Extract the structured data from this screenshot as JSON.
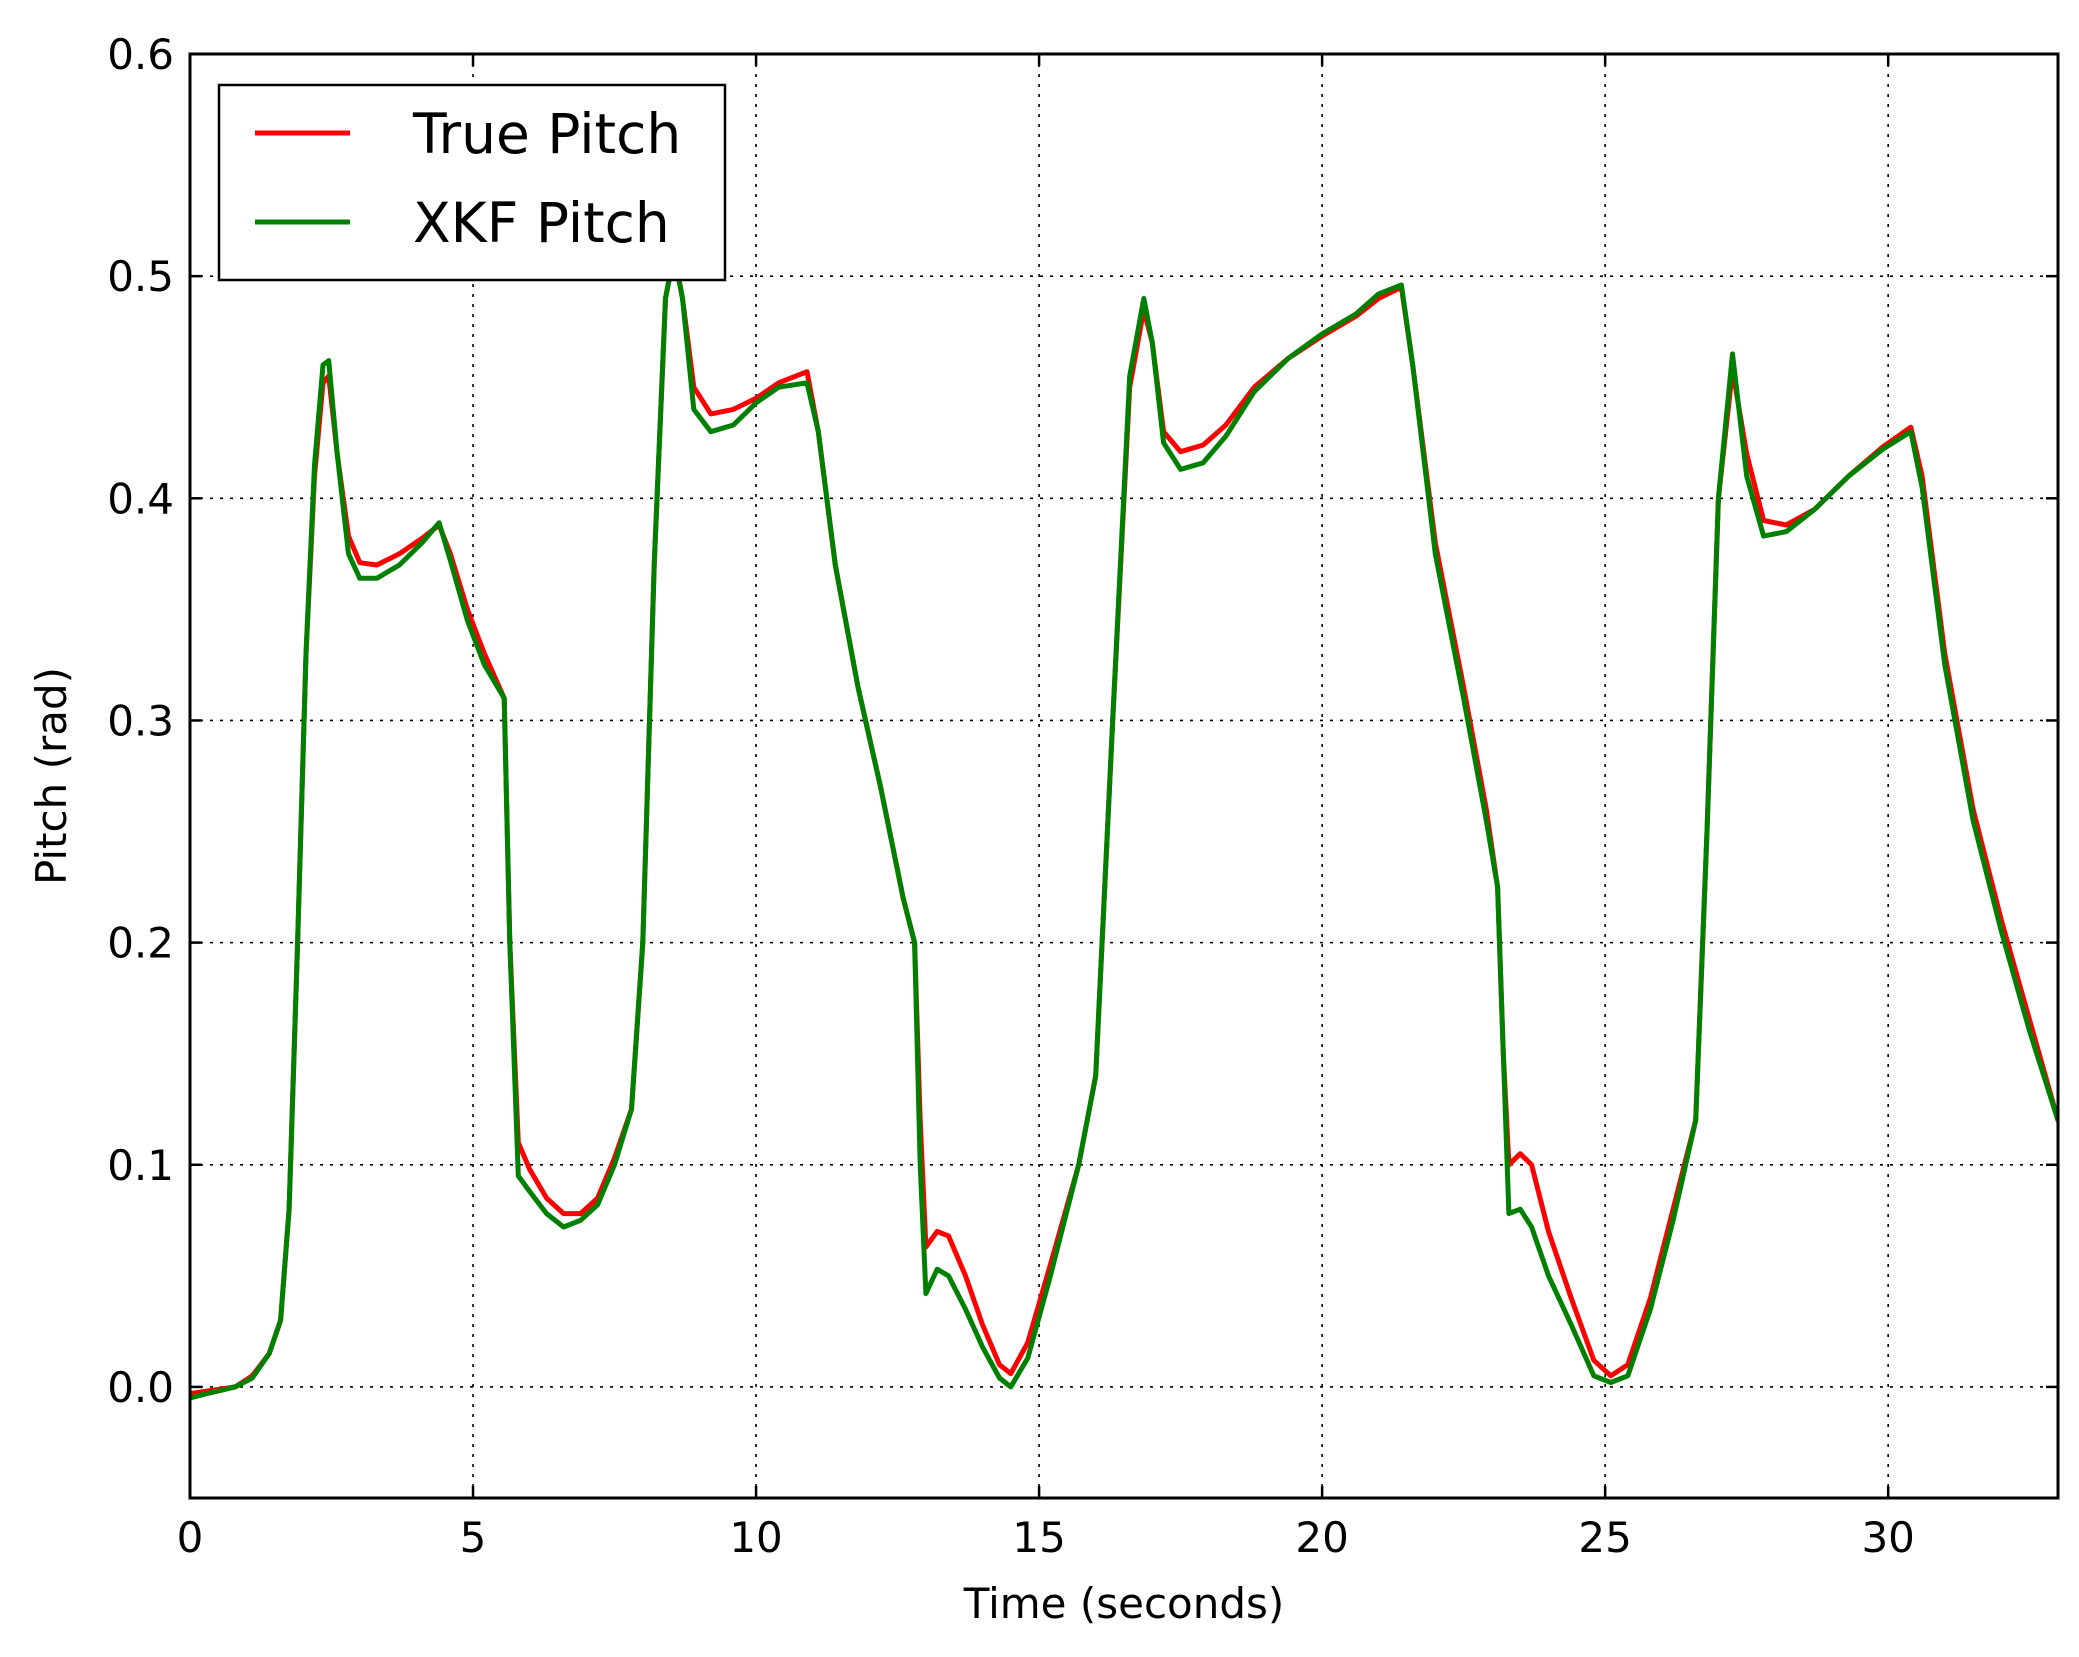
{
  "chart_data": {
    "type": "line",
    "title": "",
    "xlabel": "Time (seconds)",
    "ylabel": "Pitch (rad)",
    "xlim": [
      0,
      33
    ],
    "ylim": [
      -0.05,
      0.6
    ],
    "xticks": [
      0,
      5,
      10,
      15,
      20,
      25,
      30
    ],
    "xtick_labels": [
      "0",
      "5",
      "10",
      "15",
      "20",
      "25",
      "30"
    ],
    "yticks": [
      0.0,
      0.1,
      0.2,
      0.3,
      0.4,
      0.5,
      0.6
    ],
    "ytick_labels": [
      "0.0",
      "0.1",
      "0.2",
      "0.3",
      "0.4",
      "0.5",
      "0.6"
    ],
    "grid": true,
    "legend_position": "top-left",
    "series": [
      {
        "name": "True Pitch",
        "color": "#ff0000",
        "points": [
          [
            0,
            -0.003
          ],
          [
            0.8,
            0.0
          ],
          [
            1.1,
            0.005
          ],
          [
            1.4,
            0.015
          ],
          [
            1.6,
            0.03
          ],
          [
            1.75,
            0.08
          ],
          [
            1.9,
            0.2
          ],
          [
            2.05,
            0.33
          ],
          [
            2.2,
            0.41
          ],
          [
            2.35,
            0.452
          ],
          [
            2.45,
            0.455
          ],
          [
            2.6,
            0.42
          ],
          [
            2.8,
            0.383
          ],
          [
            3.0,
            0.371
          ],
          [
            3.3,
            0.37
          ],
          [
            3.7,
            0.375
          ],
          [
            4.1,
            0.382
          ],
          [
            4.4,
            0.388
          ],
          [
            4.6,
            0.375
          ],
          [
            4.9,
            0.35
          ],
          [
            5.2,
            0.33
          ],
          [
            5.55,
            0.31
          ],
          [
            5.65,
            0.2
          ],
          [
            5.8,
            0.11
          ],
          [
            6.0,
            0.098
          ],
          [
            6.3,
            0.085
          ],
          [
            6.6,
            0.078
          ],
          [
            6.9,
            0.078
          ],
          [
            7.2,
            0.085
          ],
          [
            7.5,
            0.103
          ],
          [
            7.8,
            0.125
          ],
          [
            8.0,
            0.2
          ],
          [
            8.2,
            0.37
          ],
          [
            8.4,
            0.49
          ],
          [
            8.55,
            0.51
          ],
          [
            8.7,
            0.49
          ],
          [
            8.9,
            0.45
          ],
          [
            9.2,
            0.438
          ],
          [
            9.6,
            0.44
          ],
          [
            10.0,
            0.445
          ],
          [
            10.4,
            0.452
          ],
          [
            10.9,
            0.457
          ],
          [
            11.1,
            0.43
          ],
          [
            11.4,
            0.37
          ],
          [
            11.8,
            0.315
          ],
          [
            12.2,
            0.27
          ],
          [
            12.6,
            0.22
          ],
          [
            12.8,
            0.2
          ],
          [
            12.9,
            0.12
          ],
          [
            13.0,
            0.063
          ],
          [
            13.2,
            0.07
          ],
          [
            13.4,
            0.068
          ],
          [
            13.7,
            0.05
          ],
          [
            14.0,
            0.028
          ],
          [
            14.3,
            0.01
          ],
          [
            14.5,
            0.006
          ],
          [
            14.8,
            0.02
          ],
          [
            15.2,
            0.055
          ],
          [
            15.7,
            0.1
          ],
          [
            16.0,
            0.14
          ],
          [
            16.3,
            0.3
          ],
          [
            16.6,
            0.45
          ],
          [
            16.85,
            0.485
          ],
          [
            17.0,
            0.47
          ],
          [
            17.2,
            0.43
          ],
          [
            17.5,
            0.421
          ],
          [
            17.9,
            0.424
          ],
          [
            18.3,
            0.433
          ],
          [
            18.8,
            0.45
          ],
          [
            19.4,
            0.463
          ],
          [
            20.0,
            0.473
          ],
          [
            20.6,
            0.482
          ],
          [
            21.0,
            0.49
          ],
          [
            21.4,
            0.495
          ],
          [
            21.6,
            0.46
          ],
          [
            22.0,
            0.38
          ],
          [
            22.5,
            0.315
          ],
          [
            22.9,
            0.26
          ],
          [
            23.1,
            0.225
          ],
          [
            23.2,
            0.15
          ],
          [
            23.3,
            0.1
          ],
          [
            23.5,
            0.105
          ],
          [
            23.7,
            0.1
          ],
          [
            24.0,
            0.07
          ],
          [
            24.4,
            0.04
          ],
          [
            24.8,
            0.012
          ],
          [
            25.1,
            0.005
          ],
          [
            25.4,
            0.01
          ],
          [
            25.8,
            0.04
          ],
          [
            26.2,
            0.08
          ],
          [
            26.6,
            0.12
          ],
          [
            26.8,
            0.25
          ],
          [
            27.0,
            0.4
          ],
          [
            27.25,
            0.458
          ],
          [
            27.5,
            0.42
          ],
          [
            27.8,
            0.39
          ],
          [
            28.2,
            0.388
          ],
          [
            28.7,
            0.395
          ],
          [
            29.3,
            0.41
          ],
          [
            29.9,
            0.423
          ],
          [
            30.4,
            0.432
          ],
          [
            30.6,
            0.41
          ],
          [
            31.0,
            0.33
          ],
          [
            31.5,
            0.26
          ],
          [
            32.0,
            0.21
          ],
          [
            32.5,
            0.165
          ],
          [
            33.0,
            0.12
          ]
        ]
      },
      {
        "name": "XKF Pitch",
        "color": "#008000",
        "points": [
          [
            0,
            -0.005
          ],
          [
            0.3,
            -0.003
          ],
          [
            0.8,
            0.0
          ],
          [
            1.1,
            0.004
          ],
          [
            1.4,
            0.015
          ],
          [
            1.6,
            0.03
          ],
          [
            1.75,
            0.08
          ],
          [
            1.9,
            0.2
          ],
          [
            2.05,
            0.33
          ],
          [
            2.2,
            0.415
          ],
          [
            2.35,
            0.46
          ],
          [
            2.45,
            0.462
          ],
          [
            2.6,
            0.42
          ],
          [
            2.8,
            0.375
          ],
          [
            3.0,
            0.364
          ],
          [
            3.3,
            0.364
          ],
          [
            3.7,
            0.37
          ],
          [
            4.1,
            0.38
          ],
          [
            4.4,
            0.389
          ],
          [
            4.6,
            0.372
          ],
          [
            4.9,
            0.345
          ],
          [
            5.2,
            0.325
          ],
          [
            5.55,
            0.31
          ],
          [
            5.65,
            0.2
          ],
          [
            5.8,
            0.095
          ],
          [
            6.0,
            0.088
          ],
          [
            6.3,
            0.078
          ],
          [
            6.6,
            0.072
          ],
          [
            6.9,
            0.075
          ],
          [
            7.2,
            0.082
          ],
          [
            7.5,
            0.1
          ],
          [
            7.8,
            0.125
          ],
          [
            8.0,
            0.2
          ],
          [
            8.2,
            0.37
          ],
          [
            8.4,
            0.49
          ],
          [
            8.55,
            0.51
          ],
          [
            8.7,
            0.49
          ],
          [
            8.9,
            0.44
          ],
          [
            9.2,
            0.43
          ],
          [
            9.6,
            0.433
          ],
          [
            10.0,
            0.443
          ],
          [
            10.4,
            0.45
          ],
          [
            10.9,
            0.452
          ],
          [
            11.1,
            0.43
          ],
          [
            11.4,
            0.37
          ],
          [
            11.8,
            0.315
          ],
          [
            12.2,
            0.27
          ],
          [
            12.6,
            0.22
          ],
          [
            12.8,
            0.2
          ],
          [
            12.9,
            0.1
          ],
          [
            13.0,
            0.042
          ],
          [
            13.2,
            0.053
          ],
          [
            13.4,
            0.05
          ],
          [
            13.7,
            0.035
          ],
          [
            14.0,
            0.018
          ],
          [
            14.3,
            0.004
          ],
          [
            14.5,
            0.0
          ],
          [
            14.8,
            0.013
          ],
          [
            15.2,
            0.05
          ],
          [
            15.7,
            0.1
          ],
          [
            16.0,
            0.14
          ],
          [
            16.3,
            0.3
          ],
          [
            16.6,
            0.455
          ],
          [
            16.85,
            0.49
          ],
          [
            17.0,
            0.47
          ],
          [
            17.2,
            0.425
          ],
          [
            17.5,
            0.413
          ],
          [
            17.9,
            0.416
          ],
          [
            18.3,
            0.428
          ],
          [
            18.8,
            0.448
          ],
          [
            19.4,
            0.463
          ],
          [
            20.0,
            0.474
          ],
          [
            20.6,
            0.483
          ],
          [
            21.0,
            0.492
          ],
          [
            21.4,
            0.496
          ],
          [
            21.6,
            0.46
          ],
          [
            22.0,
            0.375
          ],
          [
            22.5,
            0.31
          ],
          [
            22.9,
            0.255
          ],
          [
            23.1,
            0.225
          ],
          [
            23.2,
            0.15
          ],
          [
            23.3,
            0.078
          ],
          [
            23.5,
            0.08
          ],
          [
            23.7,
            0.072
          ],
          [
            24.0,
            0.05
          ],
          [
            24.4,
            0.028
          ],
          [
            24.8,
            0.005
          ],
          [
            25.1,
            0.002
          ],
          [
            25.4,
            0.005
          ],
          [
            25.8,
            0.035
          ],
          [
            26.2,
            0.075
          ],
          [
            26.6,
            0.12
          ],
          [
            26.8,
            0.25
          ],
          [
            27.0,
            0.4
          ],
          [
            27.25,
            0.465
          ],
          [
            27.5,
            0.41
          ],
          [
            27.8,
            0.383
          ],
          [
            28.2,
            0.385
          ],
          [
            28.7,
            0.395
          ],
          [
            29.3,
            0.41
          ],
          [
            29.9,
            0.422
          ],
          [
            30.4,
            0.43
          ],
          [
            30.6,
            0.405
          ],
          [
            31.0,
            0.325
          ],
          [
            31.5,
            0.255
          ],
          [
            32.0,
            0.205
          ],
          [
            32.5,
            0.16
          ],
          [
            33.0,
            0.12
          ]
        ]
      }
    ]
  }
}
